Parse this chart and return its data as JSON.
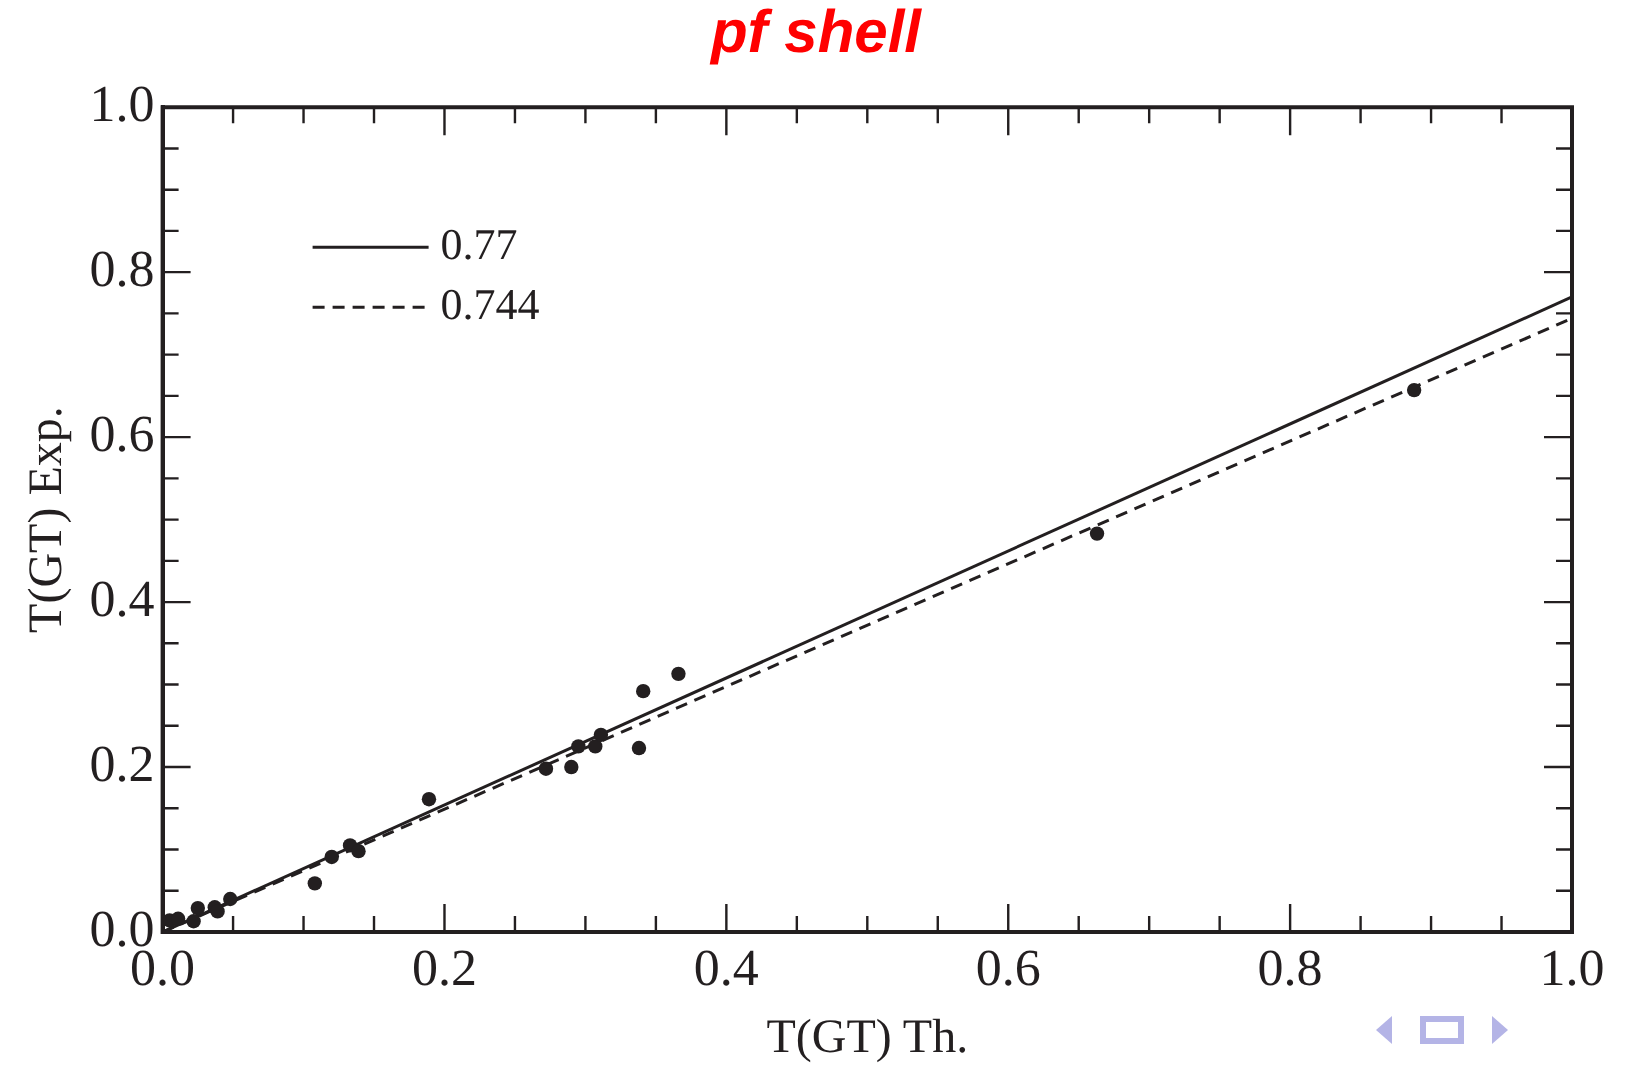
{
  "chart_data": {
    "type": "scatter",
    "title": "pf shell",
    "xlabel": "T(GT) Th.",
    "ylabel": "T(GT) Exp.",
    "xlim": [
      0,
      1
    ],
    "ylim": [
      0,
      1
    ],
    "xticks": [
      {
        "value": 0,
        "label": "0.0"
      },
      {
        "value": 0.05,
        "label": null
      },
      {
        "value": 0.1,
        "label": null
      },
      {
        "value": 0.15,
        "label": null
      },
      {
        "value": 0.2,
        "label": "0.2"
      },
      {
        "value": 0.25,
        "label": null
      },
      {
        "value": 0.3,
        "label": null
      },
      {
        "value": 0.35,
        "label": null
      },
      {
        "value": 0.4,
        "label": "0.4"
      },
      {
        "value": 0.45,
        "label": null
      },
      {
        "value": 0.5,
        "label": null
      },
      {
        "value": 0.55,
        "label": null
      },
      {
        "value": 0.6,
        "label": "0.6"
      },
      {
        "value": 0.65,
        "label": null
      },
      {
        "value": 0.7,
        "label": null
      },
      {
        "value": 0.75,
        "label": null
      },
      {
        "value": 0.8,
        "label": "0.8"
      },
      {
        "value": 0.85,
        "label": null
      },
      {
        "value": 0.9,
        "label": null
      },
      {
        "value": 0.95,
        "label": null
      },
      {
        "value": 1,
        "label": "1.0"
      }
    ],
    "yticks": [
      {
        "value": 0,
        "label": "0.0"
      },
      {
        "value": 0.05,
        "label": null
      },
      {
        "value": 0.1,
        "label": null
      },
      {
        "value": 0.15,
        "label": null
      },
      {
        "value": 0.2,
        "label": "0.2"
      },
      {
        "value": 0.25,
        "label": null
      },
      {
        "value": 0.3,
        "label": null
      },
      {
        "value": 0.35,
        "label": null
      },
      {
        "value": 0.4,
        "label": "0.4"
      },
      {
        "value": 0.45,
        "label": null
      },
      {
        "value": 0.5,
        "label": null
      },
      {
        "value": 0.55,
        "label": null
      },
      {
        "value": 0.6,
        "label": "0.6"
      },
      {
        "value": 0.65,
        "label": null
      },
      {
        "value": 0.7,
        "label": null
      },
      {
        "value": 0.75,
        "label": null
      },
      {
        "value": 0.8,
        "label": "0.8"
      },
      {
        "value": 0.85,
        "label": null
      },
      {
        "value": 0.9,
        "label": null
      },
      {
        "value": 0.95,
        "label": null
      },
      {
        "value": 1,
        "label": "1.0"
      }
    ],
    "grid": false,
    "legend": "top left",
    "series": [
      {
        "type": "scatter",
        "color": "#231f20",
        "marker": "circle",
        "x": [
          0.005,
          0.011,
          0.022,
          0.025,
          0.037,
          0.039,
          0.048,
          0.108,
          0.12,
          0.133,
          0.139,
          0.189,
          0.272,
          0.29,
          0.295,
          0.307,
          0.311,
          0.338,
          0.341,
          0.366,
          0.663,
          0.888
        ],
        "values": [
          0.014,
          0.016,
          0.013,
          0.029,
          0.03,
          0.025,
          0.04,
          0.059,
          0.091,
          0.105,
          0.098,
          0.161,
          0.198,
          0.2,
          0.225,
          0.225,
          0.239,
          0.223,
          0.292,
          0.313,
          0.483,
          0.657
        ]
      },
      {
        "type": "line",
        "name": "0.77",
        "color": "#231f20",
        "marker": "none",
        "line_style": "solid",
        "x": [
          0,
          1
        ],
        "values": [
          0,
          0.77
        ]
      },
      {
        "type": "line",
        "name": "0.744",
        "color": "#231f20",
        "marker": "none",
        "line_style": "dashed",
        "x": [
          0,
          1
        ],
        "values": [
          0,
          0.744
        ]
      }
    ]
  }
}
